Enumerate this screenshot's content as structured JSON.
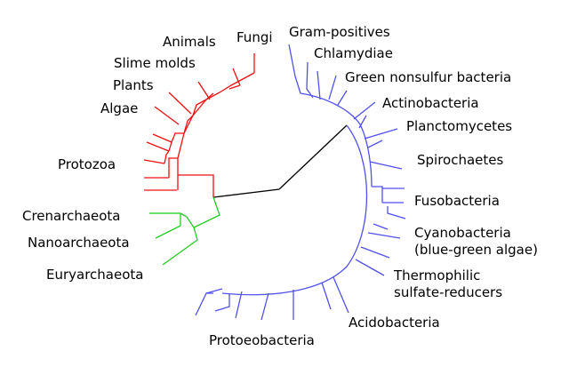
{
  "colors": {
    "eukaryota": "#ee1111",
    "archaea": "#22cc22",
    "bacteria": "#5050ee",
    "root": "#000000"
  },
  "labels": {
    "animals": "Animals",
    "fungi": "Fungi",
    "slime_molds": "Slime molds",
    "plants": "Plants",
    "algae": "Algae",
    "protozoa": "Protozoa",
    "crenarchaeota": "Crenarchaeota",
    "nanoarchaeota": "Nanoarchaeota",
    "euryarchaeota": "Euryarchaeota",
    "gram_positives": "Gram-positives",
    "chlamydiae": "Chlamydiae",
    "green_nonsulfur": "Green nonsulfur bacteria",
    "actinobacteria": "Actinobacteria",
    "planctomycetes": "Planctomycetes",
    "spirochaetes": "Spirochaetes",
    "fusobacteria": "Fusobacteria",
    "cyanobacteria_1": "Cyanobacteria",
    "cyanobacteria_2": "(blue-green algae)",
    "thermophilic_1": "Thermophilic",
    "thermophilic_2": "sulfate-reducers",
    "acidobacteria": "Acidobacteria",
    "protoeobacteria": "Protoeobacteria"
  }
}
